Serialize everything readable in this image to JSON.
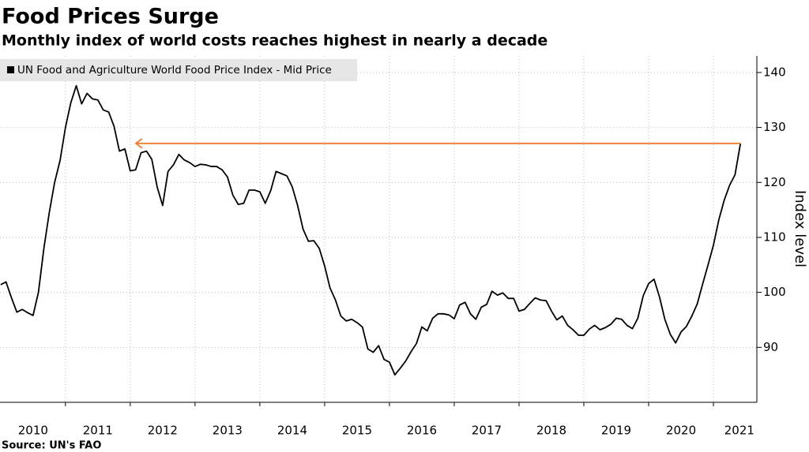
{
  "chart_data": {
    "type": "line",
    "title": "Food Prices Surge",
    "subtitle": "Monthly index of world costs reaches highest in nearly a decade",
    "source": "Source: UN's FAO",
    "y_axis_label": "Index level",
    "legend_position": "top-left",
    "grid": true,
    "arrow_color": "#f07b30",
    "xlim": [
      2009.99,
      2021.67
    ],
    "ylim": [
      80,
      143
    ],
    "yticks": [
      90,
      100,
      110,
      120,
      130,
      140
    ],
    "xgrid": [
      2011,
      2012,
      2013,
      2014,
      2015,
      2016,
      2017,
      2018,
      2019,
      2020,
      2021
    ],
    "xticks": [
      {
        "value": 2010.5,
        "label": "2010"
      },
      {
        "value": 2011.5,
        "label": "2011"
      },
      {
        "value": 2012.5,
        "label": "2012"
      },
      {
        "value": 2013.5,
        "label": "2013"
      },
      {
        "value": 2014.5,
        "label": "2014"
      },
      {
        "value": 2015.5,
        "label": "2015"
      },
      {
        "value": 2016.5,
        "label": "2016"
      },
      {
        "value": 2017.5,
        "label": "2017"
      },
      {
        "value": 2018.5,
        "label": "2018"
      },
      {
        "value": 2019.5,
        "label": "2019"
      },
      {
        "value": 2020.5,
        "label": "2020"
      },
      {
        "value": 2021.4,
        "label": "2021"
      }
    ],
    "x": [
      2010,
      2010.083,
      2010.167,
      2010.25,
      2010.333,
      2010.417,
      2010.5,
      2010.583,
      2010.667,
      2010.75,
      2010.833,
      2010.917,
      2011,
      2011.083,
      2011.167,
      2011.25,
      2011.333,
      2011.417,
      2011.5,
      2011.583,
      2011.667,
      2011.75,
      2011.833,
      2011.917,
      2012,
      2012.083,
      2012.167,
      2012.25,
      2012.333,
      2012.417,
      2012.5,
      2012.583,
      2012.667,
      2012.75,
      2012.833,
      2012.917,
      2013,
      2013.083,
      2013.167,
      2013.25,
      2013.333,
      2013.417,
      2013.5,
      2013.583,
      2013.667,
      2013.75,
      2013.833,
      2013.917,
      2014,
      2014.083,
      2014.167,
      2014.25,
      2014.333,
      2014.417,
      2014.5,
      2014.583,
      2014.667,
      2014.75,
      2014.833,
      2014.917,
      2015,
      2015.083,
      2015.167,
      2015.25,
      2015.333,
      2015.417,
      2015.5,
      2015.583,
      2015.667,
      2015.75,
      2015.833,
      2015.917,
      2016,
      2016.083,
      2016.167,
      2016.25,
      2016.333,
      2016.417,
      2016.5,
      2016.583,
      2016.667,
      2016.75,
      2016.833,
      2016.917,
      2017,
      2017.083,
      2017.167,
      2017.25,
      2017.333,
      2017.417,
      2017.5,
      2017.583,
      2017.667,
      2017.75,
      2017.833,
      2017.917,
      2018,
      2018.083,
      2018.167,
      2018.25,
      2018.333,
      2018.417,
      2018.5,
      2018.583,
      2018.667,
      2018.75,
      2018.833,
      2018.917,
      2019,
      2019.083,
      2019.167,
      2019.25,
      2019.333,
      2019.417,
      2019.5,
      2019.583,
      2019.667,
      2019.75,
      2019.833,
      2019.917,
      2020,
      2020.083,
      2020.167,
      2020.25,
      2020.333,
      2020.417,
      2020.5,
      2020.583,
      2020.667,
      2020.75,
      2020.833,
      2020.917,
      2021,
      2021.083,
      2021.167,
      2021.25,
      2021.333,
      2021.417
    ],
    "series": [
      {
        "name": "UN Food and Agriculture World Food Price Index - Mid Price",
        "color": "#000000",
        "values": [
          101.4,
          101.9,
          99,
          96.4,
          96.9,
          96.3,
          95.8,
          100,
          108,
          114.5,
          120,
          124,
          130,
          134.5,
          137.6,
          134.3,
          136.2,
          135.2,
          135,
          133.2,
          132.8,
          130.2,
          125.7,
          126.1,
          122.1,
          122.3,
          125.4,
          125.7,
          124.2,
          119.1,
          115.8,
          122,
          123.2,
          125.1,
          124.1,
          123.6,
          122.9,
          123.3,
          123.2,
          122.9,
          122.9,
          122.3,
          121,
          117.7,
          116,
          116.2,
          118.6,
          118.6,
          118.3,
          116.2,
          118.5,
          122,
          121.6,
          121.2,
          119.2,
          115.8,
          111.5,
          109.3,
          109.4,
          108,
          104.8,
          100.8,
          98.6,
          95.7,
          94.8,
          95.1,
          94.5,
          93.7,
          89.7,
          89.1,
          90.3,
          87.8,
          87.3,
          85,
          86.2,
          87.5,
          89.2,
          90.7,
          93.7,
          93,
          95.3,
          96.1,
          96.1,
          95.9,
          95.2,
          97.7,
          98.2,
          96.1,
          95.1,
          97.3,
          97.8,
          100.2,
          99.5,
          99.9,
          98.9,
          98.9,
          96.6,
          96.9,
          98,
          99,
          98.6,
          98.5,
          96.6,
          95,
          95.7,
          94,
          93.2,
          92.2,
          92.2,
          93.3,
          94,
          93.2,
          93.6,
          94.2,
          95.3,
          95.1,
          94,
          93.4,
          95.3,
          99.4,
          101.6,
          102.4,
          99.2,
          95.1,
          92.4,
          90.8,
          92.8,
          93.8,
          95.7,
          97.9,
          101.5,
          105,
          108.6,
          113.2,
          116.8,
          119.5,
          121.4,
          127.1
        ]
      }
    ]
  }
}
